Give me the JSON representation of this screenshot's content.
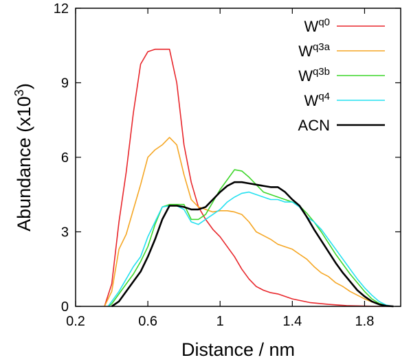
{
  "chart_data": {
    "type": "line",
    "xlabel": "Distance / nm",
    "ylabel_main": "Abundance (x10",
    "ylabel_sup": "3",
    "ylabel_close": ")",
    "xlim": [
      0.2,
      2.0
    ],
    "ylim": [
      0,
      12
    ],
    "xticks": [
      0.2,
      0.6,
      1.0,
      1.4,
      1.8
    ],
    "xtick_labels": [
      "0.2",
      "0.6",
      "1",
      "1.4",
      "1.8"
    ],
    "yticks": [
      0,
      3,
      6,
      9,
      12
    ],
    "ytick_labels": [
      "0",
      "3",
      "6",
      "9",
      "12"
    ],
    "grid": false,
    "legend_position": "top-right",
    "series": [
      {
        "name_base": "W",
        "name_sup": "q0",
        "color": "#e8262b",
        "width": 1.6,
        "x": [
          0.36,
          0.4,
          0.44,
          0.48,
          0.52,
          0.56,
          0.6,
          0.64,
          0.68,
          0.72,
          0.76,
          0.8,
          0.84,
          0.88,
          0.92,
          0.96,
          1.0,
          1.04,
          1.08,
          1.12,
          1.16,
          1.2,
          1.24,
          1.28,
          1.32,
          1.36,
          1.4,
          1.5,
          1.6,
          1.7,
          1.8,
          1.88,
          1.96
        ],
        "y": [
          0.0,
          0.9,
          3.4,
          5.4,
          7.8,
          9.75,
          10.25,
          10.35,
          10.35,
          10.35,
          9.0,
          6.5,
          5.0,
          4.0,
          3.5,
          3.1,
          2.8,
          2.4,
          2.0,
          1.5,
          1.1,
          0.8,
          0.65,
          0.55,
          0.5,
          0.4,
          0.3,
          0.15,
          0.08,
          0.03,
          0.01,
          0.0,
          0.0
        ]
      },
      {
        "name_base": "W",
        "name_sup": "q3a",
        "color": "#f5a623",
        "width": 1.6,
        "x": [
          0.36,
          0.4,
          0.44,
          0.48,
          0.52,
          0.56,
          0.6,
          0.64,
          0.68,
          0.72,
          0.76,
          0.8,
          0.84,
          0.88,
          0.92,
          0.96,
          1.0,
          1.04,
          1.08,
          1.12,
          1.16,
          1.2,
          1.24,
          1.28,
          1.32,
          1.36,
          1.4,
          1.44,
          1.48,
          1.52,
          1.56,
          1.6,
          1.64,
          1.68,
          1.72,
          1.76,
          1.8,
          1.84,
          1.88,
          1.92,
          1.96
        ],
        "y": [
          0.0,
          0.6,
          2.3,
          2.9,
          3.9,
          4.9,
          6.0,
          6.3,
          6.5,
          6.8,
          6.5,
          5.3,
          4.3,
          4.0,
          3.9,
          3.8,
          3.85,
          3.85,
          3.8,
          3.7,
          3.4,
          3.0,
          2.85,
          2.7,
          2.5,
          2.4,
          2.3,
          2.1,
          1.9,
          1.6,
          1.35,
          1.2,
          0.95,
          0.8,
          0.6,
          0.45,
          0.3,
          0.18,
          0.08,
          0.02,
          0.0
        ]
      },
      {
        "name_base": "W",
        "name_sup": "q3b",
        "color": "#3dd62a",
        "width": 1.6,
        "x": [
          0.38,
          0.4,
          0.44,
          0.48,
          0.52,
          0.56,
          0.6,
          0.64,
          0.68,
          0.72,
          0.76,
          0.8,
          0.84,
          0.88,
          0.92,
          0.96,
          1.0,
          1.04,
          1.08,
          1.12,
          1.16,
          1.2,
          1.24,
          1.28,
          1.32,
          1.36,
          1.4,
          1.44,
          1.48,
          1.52,
          1.56,
          1.6,
          1.64,
          1.68,
          1.72,
          1.76,
          1.8,
          1.84,
          1.88,
          1.92,
          1.96
        ],
        "y": [
          0.0,
          0.1,
          0.5,
          0.9,
          1.3,
          1.8,
          2.4,
          3.3,
          4.0,
          4.1,
          4.1,
          4.1,
          3.5,
          3.5,
          3.7,
          4.2,
          4.7,
          5.1,
          5.5,
          5.45,
          5.2,
          4.9,
          4.6,
          4.5,
          4.4,
          4.3,
          4.2,
          4.05,
          3.75,
          3.4,
          3.0,
          2.55,
          2.1,
          1.7,
          1.3,
          0.95,
          0.6,
          0.3,
          0.12,
          0.03,
          0.0
        ]
      },
      {
        "name_base": "W",
        "name_sup": "q4",
        "color": "#22e0f0",
        "width": 1.6,
        "x": [
          0.38,
          0.4,
          0.44,
          0.48,
          0.52,
          0.56,
          0.6,
          0.64,
          0.68,
          0.72,
          0.76,
          0.8,
          0.84,
          0.88,
          0.92,
          0.96,
          1.0,
          1.04,
          1.08,
          1.12,
          1.16,
          1.2,
          1.24,
          1.28,
          1.32,
          1.36,
          1.4,
          1.44,
          1.48,
          1.52,
          1.56,
          1.6,
          1.64,
          1.68,
          1.72,
          1.76,
          1.8,
          1.84,
          1.88,
          1.92,
          1.96
        ],
        "y": [
          0.0,
          0.2,
          0.6,
          1.1,
          1.6,
          2.0,
          2.8,
          3.4,
          4.0,
          4.05,
          4.05,
          3.9,
          3.4,
          3.3,
          3.5,
          3.7,
          3.9,
          4.2,
          4.4,
          4.55,
          4.6,
          4.5,
          4.4,
          4.3,
          4.3,
          4.2,
          4.2,
          4.0,
          3.6,
          3.4,
          3.1,
          2.7,
          2.3,
          1.9,
          1.5,
          1.1,
          0.75,
          0.45,
          0.2,
          0.05,
          0.0
        ]
      },
      {
        "name_base": "ACN",
        "name_sup": "",
        "color": "#000000",
        "width": 2.6,
        "x": [
          0.4,
          0.44,
          0.48,
          0.52,
          0.56,
          0.6,
          0.64,
          0.68,
          0.72,
          0.76,
          0.8,
          0.84,
          0.88,
          0.92,
          0.96,
          1.0,
          1.04,
          1.08,
          1.12,
          1.16,
          1.2,
          1.24,
          1.28,
          1.32,
          1.36,
          1.4,
          1.44,
          1.48,
          1.52,
          1.56,
          1.6,
          1.64,
          1.68,
          1.72,
          1.76,
          1.8,
          1.84,
          1.88,
          1.92,
          1.96
        ],
        "y": [
          0.0,
          0.2,
          0.6,
          1.0,
          1.4,
          2.0,
          2.7,
          3.5,
          4.05,
          4.05,
          4.0,
          3.9,
          3.9,
          4.0,
          4.3,
          4.6,
          4.85,
          5.0,
          5.0,
          4.95,
          4.9,
          4.85,
          4.8,
          4.8,
          4.6,
          4.3,
          4.05,
          3.6,
          3.1,
          2.65,
          2.2,
          1.75,
          1.35,
          1.0,
          0.65,
          0.4,
          0.2,
          0.08,
          0.02,
          0.0
        ]
      }
    ]
  }
}
